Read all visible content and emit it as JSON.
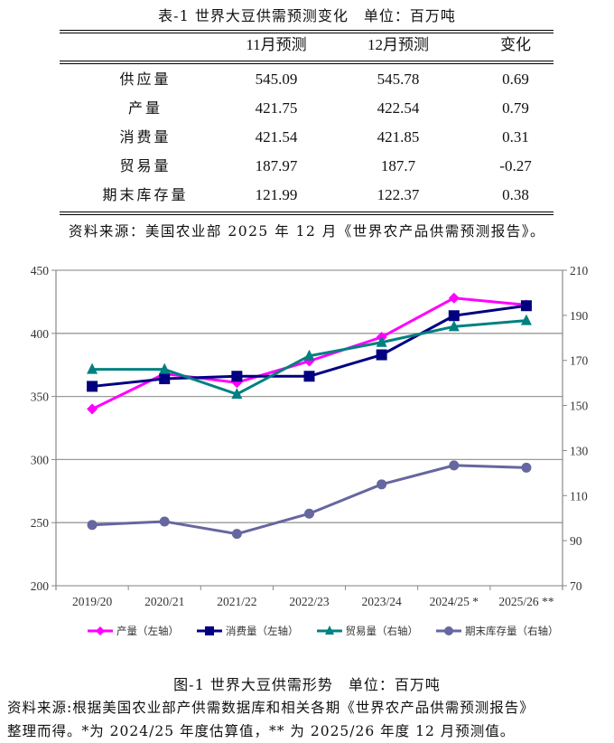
{
  "table": {
    "title": "表-1 世界大豆供需预测变化　单位：百万吨",
    "headers": [
      "",
      "11月预测",
      "12月预测",
      "变化"
    ],
    "rows": [
      {
        "label": "供应量",
        "nov": "545.09",
        "dec": "545.78",
        "change": "0.69"
      },
      {
        "label": "产量",
        "nov": "421.75",
        "dec": "422.54",
        "change": "0.79"
      },
      {
        "label": "消费量",
        "nov": "421.54",
        "dec": "421.85",
        "change": "0.31"
      },
      {
        "label": "贸易量",
        "nov": "187.97",
        "dec": "187.7",
        "change": "-0.27"
      },
      {
        "label": "期末库存量",
        "nov": "121.99",
        "dec": "122.37",
        "change": "0.38"
      }
    ],
    "source": "资料来源：美国农业部 2025 年 12 月《世界农产品供需预测报告》。"
  },
  "chart_data": {
    "type": "line",
    "title": "图-1 世界大豆供需形势　单位：百万吨",
    "categories": [
      "2019/20",
      "2020/21",
      "2021/22",
      "2022/23",
      "2023/24",
      "2024/25 *",
      "2025/26 **"
    ],
    "y_left": {
      "ylim": [
        200,
        450
      ],
      "ticks": [
        200,
        250,
        300,
        350,
        400,
        450
      ]
    },
    "y_right": {
      "ylim": [
        70,
        210
      ],
      "ticks": [
        70,
        90,
        110,
        130,
        150,
        170,
        190,
        210
      ]
    },
    "grid": true,
    "legend_position": "bottom",
    "series": [
      {
        "name": "产量（左轴）",
        "axis": "left",
        "color": "#FF00FF",
        "marker": "diamond",
        "values": [
          340,
          368,
          361,
          378,
          397,
          428,
          422.5
        ]
      },
      {
        "name": "消费量（左轴）",
        "axis": "left",
        "color": "#000080",
        "marker": "square",
        "values": [
          358,
          364,
          366,
          366,
          383,
          414,
          421.9
        ]
      },
      {
        "name": "贸易量（右轴）",
        "axis": "right",
        "color": "#008080",
        "marker": "triangle",
        "values": [
          166,
          166,
          155,
          172,
          178,
          185,
          187.7
        ]
      },
      {
        "name": "期末库存量（右轴）",
        "axis": "right",
        "color": "#6666A0",
        "marker": "circle",
        "values": [
          97,
          98.5,
          93,
          102,
          115,
          123.4,
          122.4
        ]
      }
    ]
  },
  "figure": {
    "title": "图-1 世界大豆供需形势　单位：百万吨",
    "source_line1": "资料来源:根据美国农业部产供需数据库和相关各期《世界农产品供需预测报告》",
    "source_line2": "整理而得。*为 2024/25 年度估算值，** 为 2025/26 年度 12 月预测值。"
  }
}
